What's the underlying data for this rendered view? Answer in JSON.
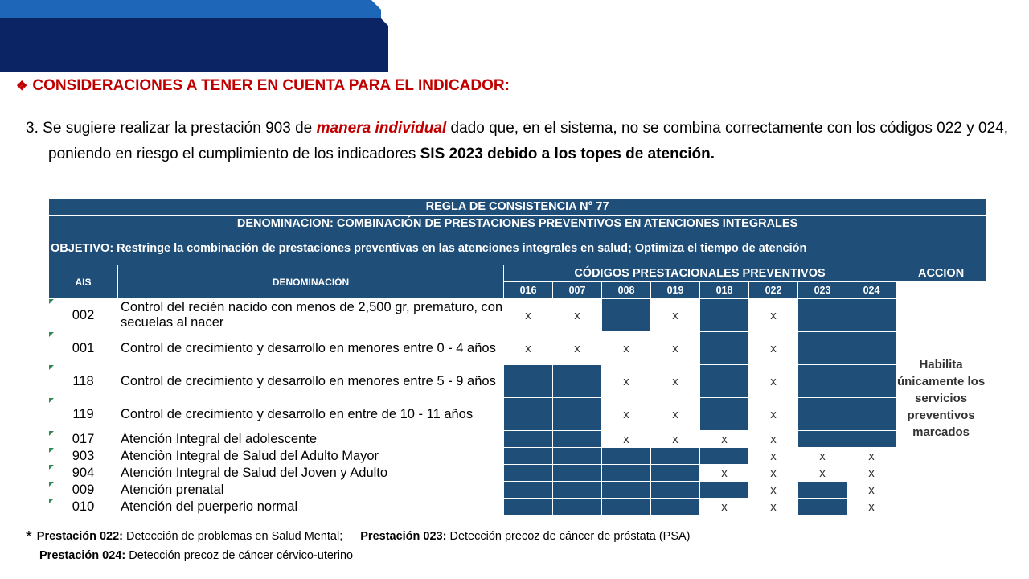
{
  "heading": {
    "icon": "diamond-bullet-icon",
    "text": "CONSIDERACIONES A TENER EN CUENTA PARA EL INDICADOR:"
  },
  "paragraph": {
    "part1": "3. Se sugiere realizar la prestación 903 de ",
    "emphasis": "manera individual",
    "part2": " dado que, en el sistema, no se combina correctamente  con los códigos 022 y 024, poniendo en riesgo el cumplimiento de los indicadores ",
    "bold_tail": "SIS 2023 debido a los topes de atención."
  },
  "table": {
    "title_line1": "REGLA DE CONSISTENCIA N° 77",
    "title_line2": "DENOMINACION: COMBINACIÓN DE PRESTACIONES PREVENTIVOS EN ATENCIONES INTEGRALES",
    "title_line3": "OBJETIVO: Restringe la combinación de prestaciones preventivas en las atenciones integrales en salud; Optimiza el tiempo de atención",
    "col_ais": "AIS",
    "col_denominacion": "DENOMINACIÓN",
    "col_codigos": "CÓDIGOS PRESTACIONALES PREVENTIVOS",
    "col_accion": "ACCION",
    "codes": [
      "016",
      "007",
      "008",
      "019",
      "018",
      "022",
      "023",
      "024"
    ],
    "accion_text": "Habilita únicamente los servicios preventivos marcados",
    "rows": [
      {
        "ais": "002",
        "denominacion": "Control del recién nacido con menos de 2,500 gr, prematuro, con secuelas al nacer",
        "cells": [
          "x",
          "x",
          "",
          "x",
          "",
          "x",
          "",
          ""
        ]
      },
      {
        "ais": "001",
        "denominacion": "Control de crecimiento y desarrollo en menores entre 0 - 4 años",
        "cells": [
          "x",
          "x",
          "x",
          "x",
          "",
          "x",
          "",
          ""
        ]
      },
      {
        "ais": "118",
        "denominacion": "Control de crecimiento y desarrollo en menores entre 5 - 9 años",
        "cells": [
          "",
          "",
          "x",
          "x",
          "",
          "x",
          "",
          ""
        ]
      },
      {
        "ais": "119",
        "denominacion": "Control de crecimiento y desarrollo en entre de 10 - 11 años",
        "cells": [
          "",
          "",
          "x",
          "x",
          "",
          "x",
          "",
          ""
        ]
      },
      {
        "ais": "017",
        "denominacion": "Atención Integral del adolescente",
        "cells": [
          "",
          "",
          "x",
          "x",
          "x",
          "x",
          "",
          ""
        ]
      },
      {
        "ais": "903",
        "denominacion": "Atenciòn Integral de Salud del Adulto Mayor",
        "cells": [
          "",
          "",
          "",
          "",
          "",
          "x",
          "x",
          "x"
        ]
      },
      {
        "ais": "904",
        "denominacion": "Atención Integral de Salud del Joven y Adulto",
        "cells": [
          "",
          "",
          "",
          "",
          "x",
          "x",
          "x",
          "x"
        ]
      },
      {
        "ais": "009",
        "denominacion": "Atención prenatal",
        "cells": [
          "",
          "",
          "",
          "",
          "",
          "x",
          "",
          "x"
        ]
      },
      {
        "ais": "010",
        "denominacion": "Atención del puerperio normal",
        "cells": [
          "",
          "",
          "",
          "",
          "x",
          "x",
          "",
          "x"
        ]
      }
    ]
  },
  "footnote": {
    "star": "*",
    "p022_label": "Prestación 022:",
    "p022_text": " Detección de problemas en Salud Mental;",
    "p023_label": "Prestación 023:",
    "p023_text": " Detección precoz de cáncer de próstata (PSA)",
    "p024_label": "Prestación 024:",
    "p024_text": " Detección precoz de cáncer cérvico-uterino"
  },
  "colors": {
    "banner_light": "#1d66b8",
    "banner_dark": "#0b2463",
    "table_blue": "#1f4e79",
    "accent_red": "#c00000"
  }
}
